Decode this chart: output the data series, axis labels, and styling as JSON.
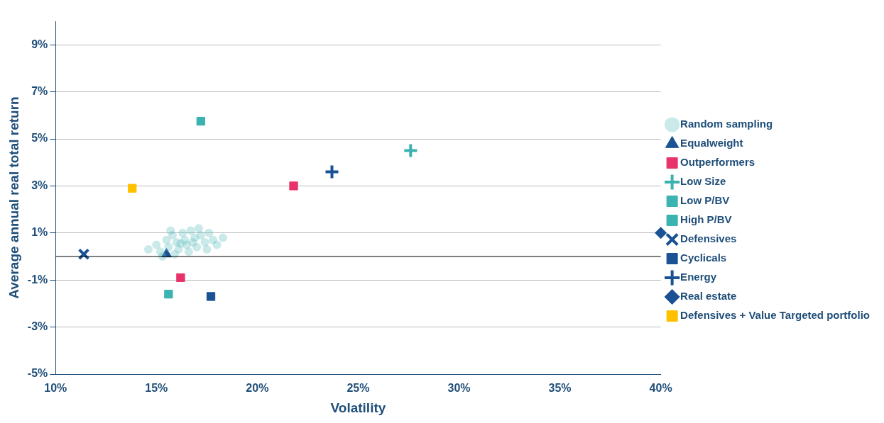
{
  "chart_data": {
    "type": "scatter",
    "xlabel": "Volatility",
    "ylabel": "Average annual real total return",
    "xlim": [
      10,
      40
    ],
    "xticks": [
      {
        "value": 10,
        "label": "10%"
      },
      {
        "value": 15,
        "label": "15%"
      },
      {
        "value": 20,
        "label": "20%"
      },
      {
        "value": 25,
        "label": "25%"
      },
      {
        "value": 30,
        "label": "30%"
      },
      {
        "value": 35,
        "label": "35%"
      },
      {
        "value": 40,
        "label": "40%"
      }
    ],
    "ylim": [
      -5,
      10
    ],
    "yticks": [
      {
        "value": -5,
        "label": "-5%"
      },
      {
        "value": -3,
        "label": "-3%"
      },
      {
        "value": -1,
        "label": "-1%"
      },
      {
        "value": 1,
        "label": "1%"
      },
      {
        "value": 3,
        "label": "3%"
      },
      {
        "value": 5,
        "label": "5%"
      },
      {
        "value": 7,
        "label": "7%"
      },
      {
        "value": 9,
        "label": "9%"
      }
    ],
    "grid": "y",
    "legend": "right",
    "ref_lines": [
      {
        "axis": "y",
        "value": 0,
        "color": "#000000"
      }
    ],
    "series": [
      {
        "color": "#e8336a",
        "marker": "square",
        "x": [
          16.2
        ],
        "values": [
          -0.9
        ]
      },
      {
        "name": "Random sampling",
        "color": "#5fbcbc",
        "marker": "circle",
        "x": [
          14.6,
          15.0,
          15.2,
          15.5,
          15.6,
          15.8,
          16.0,
          16.1,
          16.3,
          16.4,
          16.5,
          16.7,
          16.9,
          17.0,
          17.2,
          17.4,
          17.6,
          17.8,
          18.0,
          18.3,
          15.3,
          15.9,
          16.6,
          17.1,
          17.5,
          16.2,
          15.7,
          16.8
        ],
        "values": [
          0.3,
          0.5,
          0.2,
          0.7,
          0.4,
          0.9,
          0.6,
          0.3,
          1.0,
          0.7,
          0.5,
          1.1,
          0.8,
          0.4,
          0.9,
          0.6,
          1.0,
          0.7,
          0.5,
          0.8,
          0.0,
          0.1,
          0.2,
          1.2,
          0.3,
          0.55,
          1.1,
          0.6
        ]
      },
      {
        "name": "Equalweight",
        "color": "#1a5294",
        "marker": "triangle",
        "x": [
          15.5
        ],
        "values": [
          0.1
        ]
      },
      {
        "name": "Outperformers",
        "color": "#e8336a",
        "marker": "square",
        "x": [
          21.8
        ],
        "values": [
          3.0
        ]
      },
      {
        "name": "Low Size",
        "color": "#3bb3b0",
        "marker": "cross",
        "x": [
          27.6
        ],
        "values": [
          4.5
        ]
      },
      {
        "name": "Low P/BV",
        "color": "#3bb3b0",
        "marker": "square",
        "x": [
          17.2
        ],
        "values": [
          5.75
        ]
      },
      {
        "name": "High P/BV",
        "color": "#3bb3b0",
        "marker": "square",
        "x": [
          15.6
        ],
        "values": [
          -1.6
        ]
      },
      {
        "name": "Defensives",
        "color": "#1a5294",
        "marker": "x",
        "x": [
          11.4
        ],
        "values": [
          0.1
        ]
      },
      {
        "name": "Cyclicals",
        "color": "#1a5294",
        "marker": "square",
        "x": [
          17.7
        ],
        "values": [
          -1.7
        ]
      },
      {
        "name": "Energy",
        "color": "#1a5294",
        "marker": "cross",
        "x": [
          23.7
        ],
        "values": [
          3.6
        ]
      },
      {
        "name": "Real estate",
        "color": "#1a5294",
        "marker": "diamond",
        "x": [
          40
        ],
        "values": [
          1.0
        ]
      },
      {
        "name": "Defensives + Value Targeted portfolio",
        "color": "#ffc000",
        "marker": "square",
        "x": [
          13.8
        ],
        "values": [
          2.9
        ]
      }
    ]
  }
}
